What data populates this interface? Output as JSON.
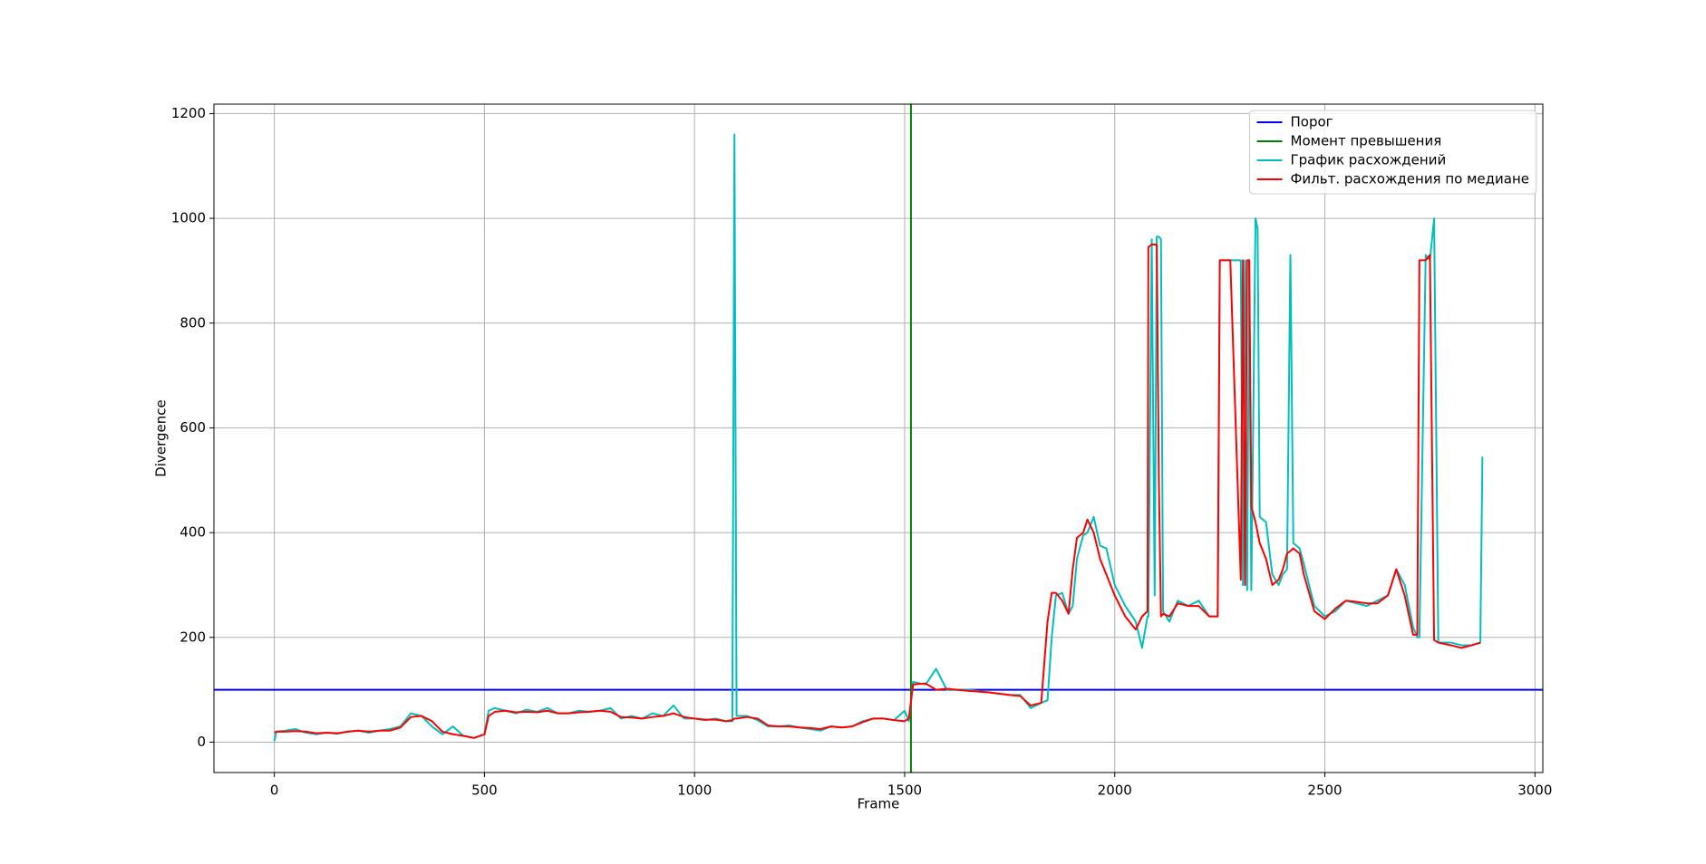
{
  "chart_data": {
    "type": "line",
    "xlabel": "Frame",
    "ylabel": "Divergence",
    "xlim": [
      -143.75,
      3018.75
    ],
    "ylim": [
      -58,
      1218
    ],
    "xticks": [
      0,
      500,
      1000,
      1500,
      2000,
      2500,
      3000
    ],
    "yticks": [
      0,
      200,
      400,
      600,
      800,
      1000,
      1200
    ],
    "grid": true,
    "legend": "upper right",
    "threshold": {
      "name": "Порог",
      "color": "#0000ff",
      "value": 100
    },
    "event": {
      "name": "Момент превышения",
      "color": "#008000",
      "x": 1515
    },
    "x": [
      0,
      5,
      25,
      50,
      75,
      100,
      125,
      150,
      175,
      200,
      225,
      250,
      275,
      300,
      325,
      350,
      375,
      400,
      425,
      450,
      475,
      500,
      510,
      525,
      550,
      575,
      600,
      625,
      650,
      675,
      700,
      725,
      750,
      775,
      800,
      825,
      850,
      875,
      900,
      925,
      950,
      975,
      1000,
      1025,
      1050,
      1075,
      1090,
      1095,
      1100,
      1125,
      1150,
      1175,
      1200,
      1225,
      1250,
      1275,
      1300,
      1325,
      1350,
      1375,
      1400,
      1425,
      1450,
      1475,
      1500,
      1510,
      1520,
      1550,
      1575,
      1600,
      1650,
      1700,
      1750,
      1775,
      1800,
      1825,
      1840,
      1850,
      1860,
      1875,
      1890,
      1900,
      1910,
      1925,
      1935,
      1950,
      1965,
      1980,
      2000,
      2025,
      2050,
      2065,
      2078,
      2080,
      2088,
      2095,
      2100,
      2105,
      2110,
      2115,
      2130,
      2150,
      2175,
      2200,
      2225,
      2245,
      2250,
      2260,
      2275,
      2300,
      2305,
      2310,
      2315,
      2320,
      2325,
      2335,
      2340,
      2345,
      2360,
      2375,
      2390,
      2400,
      2410,
      2418,
      2425,
      2440,
      2450,
      2475,
      2500,
      2525,
      2550,
      2575,
      2600,
      2625,
      2650,
      2670,
      2690,
      2710,
      2720,
      2725,
      2740,
      2750,
      2760,
      2770,
      2800,
      2825,
      2850,
      2870,
      2875
    ],
    "series": [
      {
        "name": "График расхождений",
        "color": "#00bfbf",
        "values": [
          2,
          20,
          22,
          25,
          18,
          15,
          18,
          16,
          20,
          22,
          18,
          22,
          25,
          30,
          55,
          50,
          30,
          15,
          30,
          12,
          8,
          15,
          60,
          65,
          60,
          55,
          62,
          58,
          65,
          55,
          55,
          60,
          58,
          60,
          65,
          45,
          50,
          45,
          55,
          50,
          70,
          45,
          45,
          42,
          45,
          40,
          40,
          1160,
          50,
          50,
          42,
          30,
          30,
          32,
          28,
          25,
          22,
          30,
          28,
          30,
          40,
          45,
          45,
          42,
          60,
          40,
          115,
          110,
          140,
          100,
          100,
          95,
          90,
          90,
          65,
          75,
          80,
          200,
          280,
          285,
          245,
          260,
          350,
          395,
          400,
          430,
          375,
          370,
          300,
          260,
          230,
          180,
          240,
          240,
          960,
          280,
          965,
          965,
          960,
          250,
          230,
          270,
          260,
          270,
          240,
          240,
          920,
          920,
          920,
          920,
          300,
          920,
          290,
          920,
          290,
          1000,
          980,
          430,
          420,
          320,
          300,
          320,
          330,
          930,
          380,
          370,
          340,
          260,
          240,
          250,
          270,
          265,
          260,
          270,
          280,
          330,
          300,
          220,
          200,
          200,
          930,
          920,
          1000,
          190,
          190,
          185,
          185,
          190,
          545
        ]
      },
      {
        "name": "Фильт. расхождения по медиане",
        "color": "#ff0000",
        "values": [
          18,
          20,
          20,
          21,
          20,
          17,
          18,
          17,
          20,
          22,
          20,
          22,
          22,
          28,
          48,
          50,
          40,
          20,
          15,
          12,
          8,
          15,
          50,
          58,
          60,
          57,
          58,
          57,
          60,
          55,
          55,
          57,
          58,
          60,
          58,
          48,
          47,
          45,
          48,
          50,
          55,
          48,
          45,
          43,
          43,
          40,
          42,
          45,
          45,
          48,
          45,
          32,
          30,
          30,
          28,
          27,
          25,
          30,
          28,
          30,
          38,
          45,
          45,
          42,
          40,
          45,
          110,
          112,
          100,
          102,
          98,
          95,
          90,
          88,
          70,
          75,
          230,
          285,
          285,
          270,
          245,
          330,
          390,
          400,
          425,
          400,
          350,
          320,
          280,
          240,
          215,
          240,
          250,
          945,
          950,
          950,
          950,
          500,
          240,
          245,
          240,
          265,
          260,
          260,
          240,
          240,
          920,
          920,
          920,
          310,
          920,
          300,
          920,
          920,
          450,
          420,
          400,
          380,
          350,
          300,
          310,
          330,
          360,
          365,
          370,
          360,
          320,
          250,
          235,
          255,
          270,
          268,
          265,
          265,
          280,
          330,
          280,
          205,
          205,
          920,
          920,
          930,
          195,
          190,
          185,
          180,
          185,
          190,
          null
        ]
      }
    ]
  }
}
